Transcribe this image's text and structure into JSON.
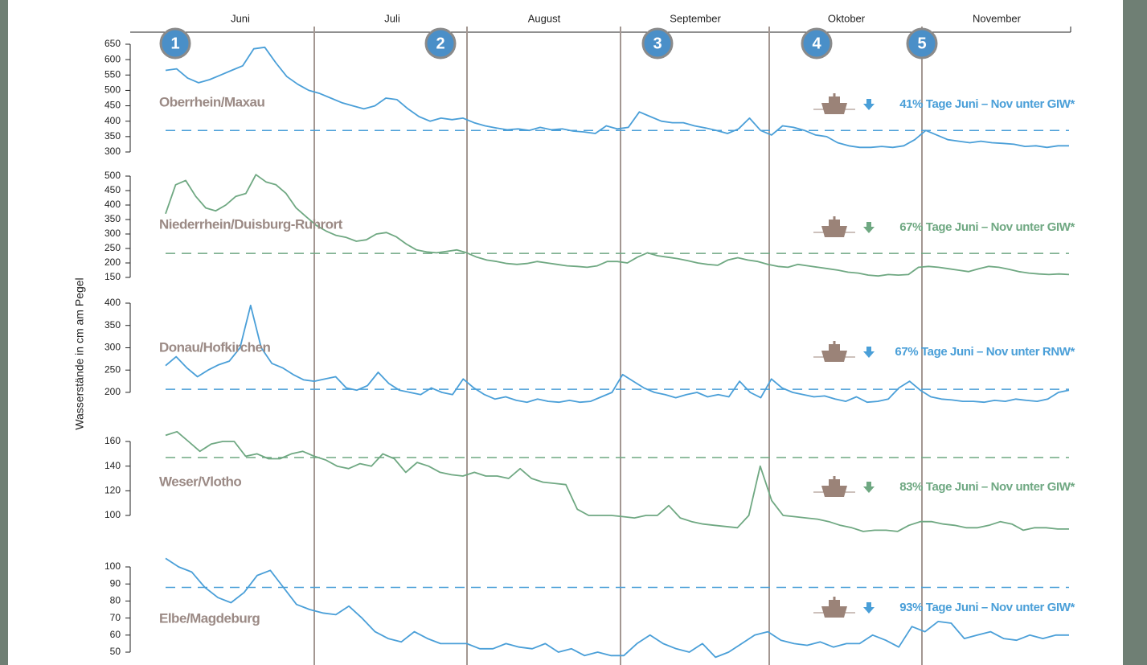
{
  "months": [
    "Juni",
    "Juli",
    "August",
    "September",
    "Oktober",
    "November"
  ],
  "y_axis_label": "Wasserstände in cm am Pegel",
  "markers": [
    "1",
    "2",
    "3",
    "4",
    "5"
  ],
  "chart_data": [
    {
      "type": "line",
      "title": "Oberrhein/Maxau",
      "color": "#4a9fd8",
      "annotation": "41% Tage Juni – Nov unter GIW*",
      "ylim": [
        300,
        650
      ],
      "yticks": [
        300,
        350,
        400,
        450,
        500,
        550,
        600,
        650
      ],
      "reference": 370,
      "values": [
        565,
        570,
        540,
        525,
        535,
        550,
        565,
        580,
        635,
        640,
        590,
        545,
        520,
        500,
        490,
        475,
        460,
        450,
        440,
        450,
        475,
        470,
        440,
        415,
        400,
        410,
        405,
        410,
        395,
        385,
        378,
        372,
        375,
        370,
        380,
        372,
        375,
        368,
        365,
        360,
        385,
        375,
        380,
        430,
        415,
        400,
        395,
        395,
        385,
        378,
        370,
        360,
        375,
        410,
        370,
        355,
        385,
        380,
        370,
        355,
        350,
        330,
        320,
        315,
        315,
        318,
        315,
        320,
        340,
        370,
        355,
        340,
        335,
        330,
        335,
        330,
        328,
        325,
        318,
        320,
        315,
        320,
        320
      ]
    },
    {
      "type": "line",
      "title": "Niederrhein/Duisburg-Ruhrort",
      "color": "#6fa882",
      "annotation": "67% Tage Juni – Nov unter GIW*",
      "ylim": [
        150,
        500
      ],
      "yticks": [
        150,
        200,
        250,
        300,
        350,
        400,
        450,
        500
      ],
      "reference": 233,
      "values": [
        370,
        470,
        485,
        430,
        390,
        380,
        400,
        430,
        440,
        505,
        480,
        470,
        440,
        390,
        360,
        330,
        310,
        295,
        288,
        275,
        280,
        300,
        305,
        290,
        265,
        245,
        238,
        235,
        240,
        245,
        235,
        220,
        210,
        205,
        198,
        195,
        198,
        205,
        200,
        195,
        190,
        188,
        185,
        190,
        205,
        205,
        200,
        220,
        235,
        225,
        220,
        215,
        208,
        200,
        195,
        192,
        210,
        218,
        210,
        205,
        195,
        188,
        185,
        195,
        190,
        185,
        180,
        175,
        168,
        165,
        158,
        155,
        160,
        158,
        160,
        185,
        188,
        185,
        180,
        175,
        170,
        180,
        188,
        185,
        178,
        170,
        165,
        162,
        160,
        162,
        160
      ]
    },
    {
      "type": "line",
      "title": "Donau/Hofkirchen",
      "color": "#4a9fd8",
      "annotation": "67% Tage Juni – Nov unter RNW*",
      "ylim": [
        170,
        400
      ],
      "yticks": [
        200,
        250,
        300,
        350,
        400
      ],
      "reference": 207,
      "values": [
        260,
        280,
        255,
        235,
        250,
        262,
        270,
        300,
        395,
        300,
        265,
        255,
        240,
        228,
        225,
        230,
        235,
        210,
        205,
        215,
        245,
        220,
        205,
        200,
        195,
        210,
        200,
        195,
        230,
        210,
        195,
        185,
        190,
        182,
        178,
        185,
        180,
        178,
        182,
        178,
        180,
        190,
        200,
        240,
        225,
        210,
        200,
        195,
        188,
        195,
        200,
        190,
        195,
        190,
        225,
        200,
        188,
        230,
        210,
        200,
        195,
        190,
        192,
        185,
        180,
        190,
        178,
        180,
        185,
        210,
        225,
        205,
        190,
        185,
        183,
        180,
        180,
        178,
        182,
        180,
        185,
        182,
        180,
        185,
        200,
        205
      ]
    },
    {
      "type": "line",
      "title": "Weser/Vlotho",
      "color": "#6fa882",
      "annotation": "83% Tage Juni – Nov unter GIW*",
      "ylim": [
        85,
        170
      ],
      "yticks": [
        100,
        120,
        140,
        160
      ],
      "reference": 147,
      "values": [
        165,
        168,
        160,
        152,
        158,
        160,
        160,
        148,
        150,
        146,
        146,
        150,
        152,
        148,
        145,
        140,
        138,
        142,
        140,
        150,
        146,
        135,
        143,
        140,
        135,
        133,
        132,
        135,
        132,
        132,
        130,
        138,
        130,
        127,
        126,
        125,
        105,
        100,
        100,
        100,
        99,
        98,
        100,
        100,
        108,
        98,
        95,
        93,
        92,
        91,
        90,
        100,
        140,
        112,
        100,
        99,
        98,
        97,
        95,
        92,
        90,
        87,
        88,
        88,
        87,
        92,
        95,
        95,
        93,
        92,
        90,
        90,
        92,
        95,
        93,
        88,
        90,
        90,
        89,
        89
      ]
    },
    {
      "type": "line",
      "title": "Elbe/Magdeburg",
      "color": "#4a9fd8",
      "annotation": "93% Tage Juni – Nov unter GIW*",
      "ylim": [
        46,
        106
      ],
      "yticks": [
        50,
        60,
        70,
        80,
        90,
        100
      ],
      "reference": 88,
      "values": [
        105,
        100,
        97,
        88,
        82,
        79,
        85,
        95,
        98,
        88,
        78,
        75,
        73,
        72,
        77,
        70,
        62,
        58,
        56,
        62,
        58,
        55,
        55,
        55,
        52,
        52,
        55,
        53,
        52,
        55,
        50,
        52,
        48,
        50,
        48,
        48,
        55,
        60,
        55,
        52,
        50,
        55,
        47,
        50,
        55,
        60,
        62,
        57,
        55,
        54,
        56,
        53,
        55,
        55,
        60,
        57,
        53,
        65,
        62,
        68,
        67,
        58,
        60,
        62,
        58,
        57,
        60,
        58,
        60,
        60
      ]
    }
  ]
}
